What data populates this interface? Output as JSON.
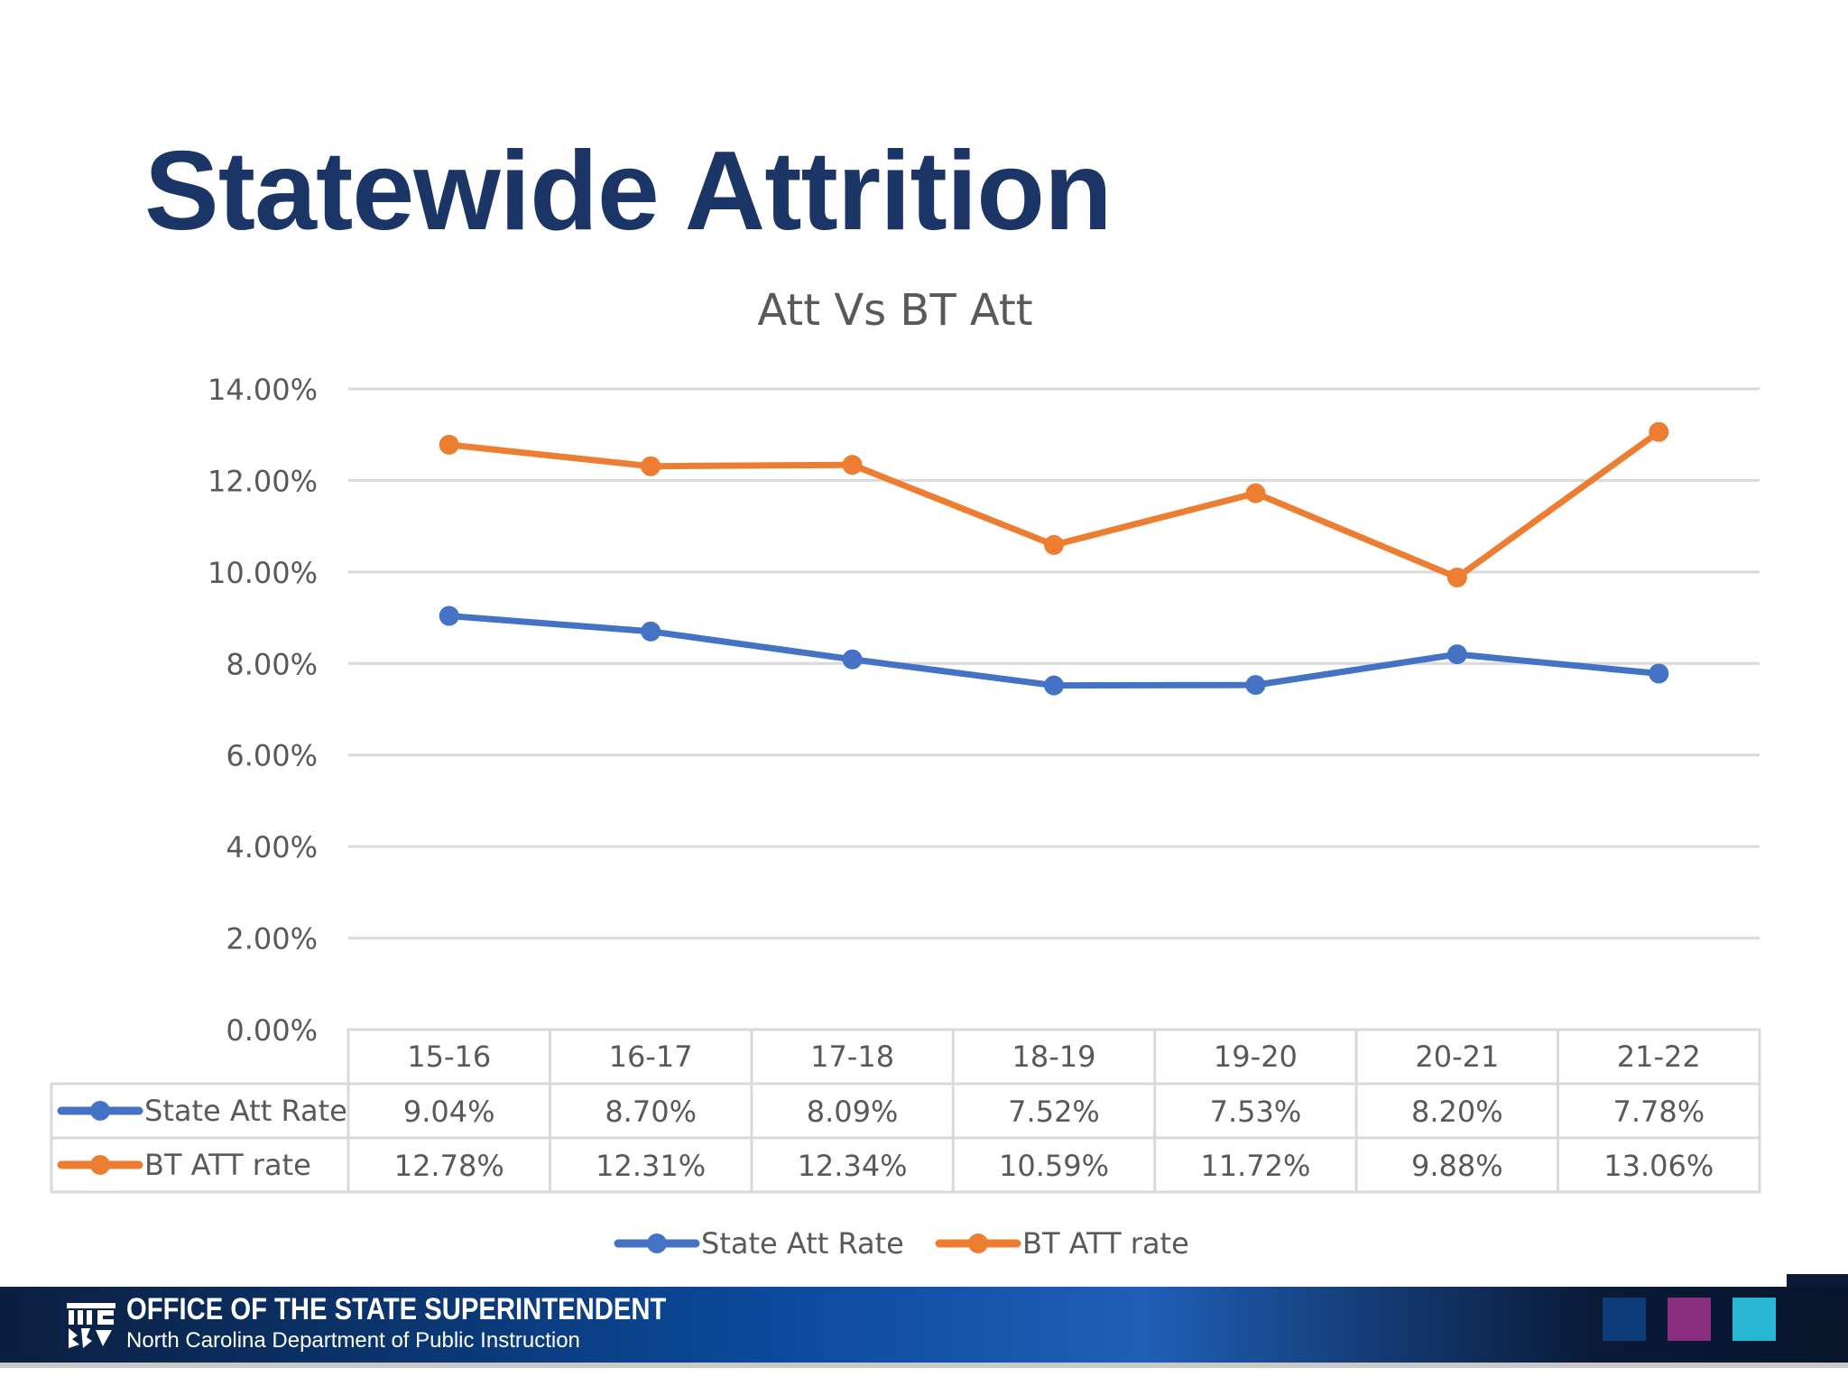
{
  "slide": {
    "title": "Statewide Attrition"
  },
  "footer": {
    "org": "OFFICE OF THE STATE SUPERINTENDENT",
    "dept": "North Carolina Department of Public Instruction",
    "logo_icon": "nc-dpi-logo-icon",
    "squares": [
      "#0d3a78",
      "#8b2d7e",
      "#29b6d4"
    ]
  },
  "chart_data": {
    "type": "line",
    "title": "Att Vs BT Att",
    "categories": [
      "15-16",
      "16-17",
      "17-18",
      "18-19",
      "19-20",
      "20-21",
      "21-22"
    ],
    "ylim": [
      0,
      14
    ],
    "yticks": [
      "0.00%",
      "2.00%",
      "4.00%",
      "6.00%",
      "8.00%",
      "10.00%",
      "12.00%",
      "14.00%"
    ],
    "grid": true,
    "legend_position": "bottom",
    "data_table": true,
    "series": [
      {
        "name": "State Att Rate",
        "color": "#4472c4",
        "values": [
          9.04,
          8.7,
          8.09,
          7.52,
          7.53,
          8.2,
          7.78
        ],
        "labels": [
          "9.04%",
          "8.70%",
          "8.09%",
          "7.52%",
          "7.53%",
          "8.20%",
          "7.78%"
        ]
      },
      {
        "name": "BT ATT rate",
        "color": "#ed7d31",
        "values": [
          12.78,
          12.31,
          12.34,
          10.59,
          11.72,
          9.88,
          13.06
        ],
        "labels": [
          "12.78%",
          "12.31%",
          "12.34%",
          "10.59%",
          "11.72%",
          "9.88%",
          "13.06%"
        ]
      }
    ]
  }
}
